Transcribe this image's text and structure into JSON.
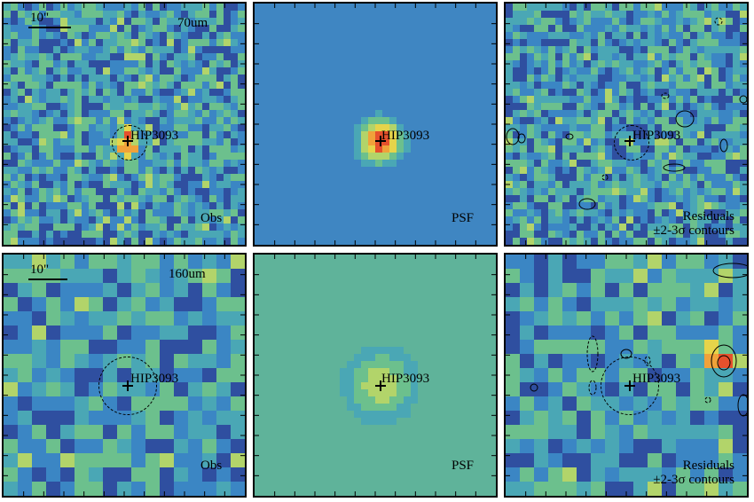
{
  "target_name": "HIP3093",
  "scale_label": "10\"",
  "rows": [
    {
      "band": "70um",
      "obs_label": "Obs",
      "psf_label": "PSF",
      "residual_label_line1": "Residuals",
      "residual_label_line2": "±2-3σ contours"
    },
    {
      "band": "160um",
      "obs_label": "Obs",
      "psf_label": "PSF",
      "residual_label_line1": "Residuals",
      "residual_label_line2": "±2-3σ contours"
    }
  ],
  "colors": {
    "colormap": [
      "#3b1a6e",
      "#2f4fa0",
      "#3b86c4",
      "#4aa7b5",
      "#6cc08d",
      "#b2d46a",
      "#e6d44a",
      "#f0a23a",
      "#e6502c"
    ],
    "psf70_background": "#3f86c2",
    "psf160_background": "#5fb39a",
    "psf_core": "#e6502c"
  }
}
